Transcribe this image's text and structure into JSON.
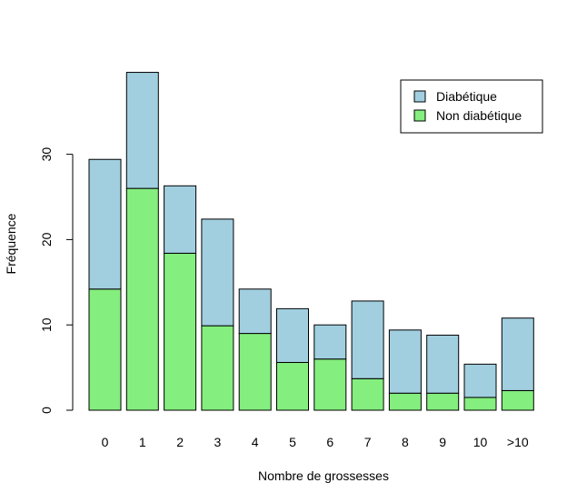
{
  "chart_data": {
    "type": "bar",
    "stacked": true,
    "xlabel": "Nombre de grossesses",
    "ylabel": "Fréquence",
    "ylim": [
      0,
      40
    ],
    "yticks": [
      0,
      10,
      20,
      30
    ],
    "categories": [
      "0",
      "1",
      "2",
      "3",
      "4",
      "5",
      "6",
      "7",
      "8",
      "9",
      "10",
      ">10"
    ],
    "series": [
      {
        "name": "Non diabétique",
        "color": "#84ee7e",
        "values": [
          14.2,
          26.0,
          18.4,
          9.9,
          9.0,
          5.6,
          6.0,
          3.7,
          2.0,
          2.0,
          1.5,
          2.3
        ]
      },
      {
        "name": "Diabétique",
        "color": "#a1cfe0",
        "values": [
          15.2,
          13.6,
          7.9,
          12.5,
          5.2,
          6.3,
          4.0,
          9.1,
          7.4,
          6.8,
          3.9,
          8.5
        ]
      }
    ],
    "legend": {
      "position": "top-right",
      "order": [
        "Diabétique",
        "Non diabétique"
      ]
    },
    "grid": false
  }
}
